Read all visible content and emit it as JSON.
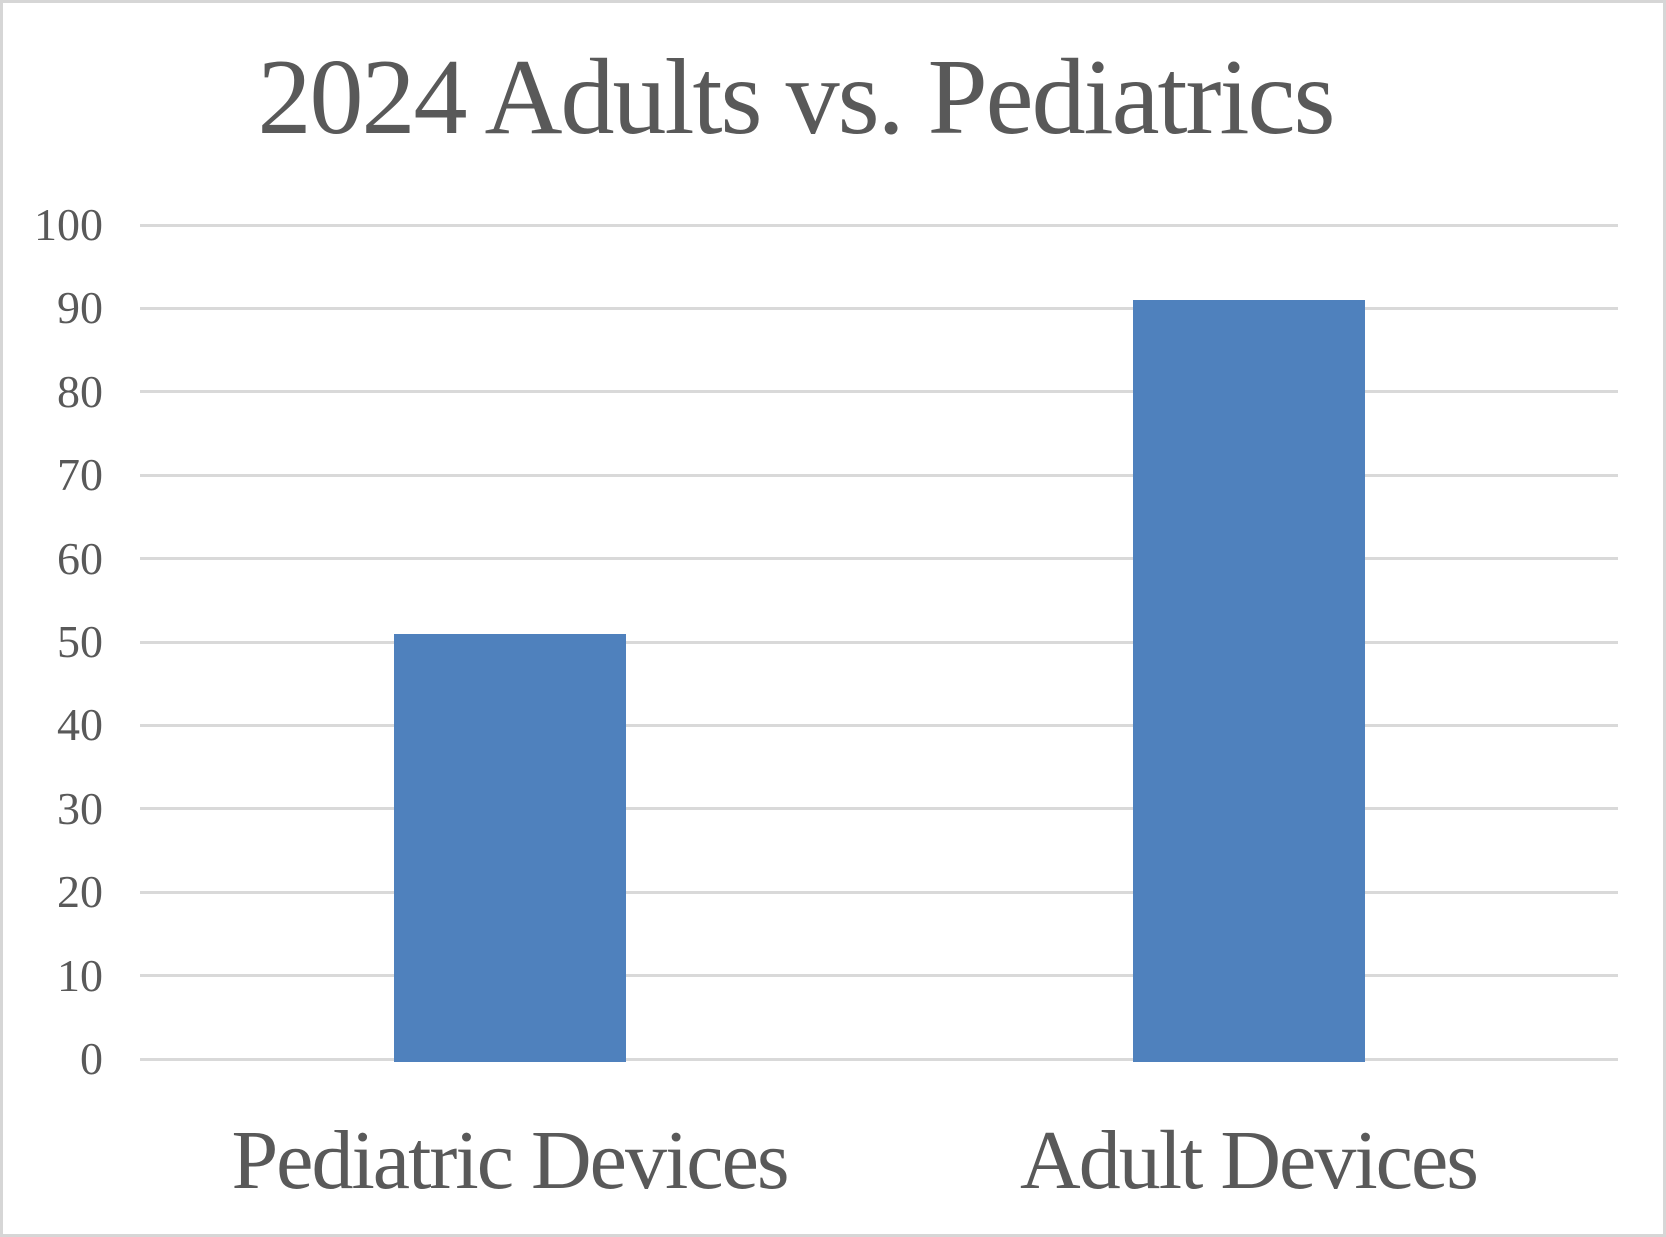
{
  "chart_data": {
    "type": "bar",
    "title": "2024 Adults vs. Pediatrics",
    "categories": [
      "Pediatric Devices",
      "Adult Devices"
    ],
    "values": [
      51,
      91
    ],
    "xlabel": "",
    "ylabel": "",
    "ylim": [
      0,
      100
    ],
    "ytick_step": 10,
    "ytick_labels": [
      "0",
      "10",
      "20",
      "30",
      "40",
      "50",
      "60",
      "70",
      "80",
      "90",
      "100"
    ],
    "grid": "horizontal-on",
    "legend": "none",
    "colors": {
      "bar_fill": "#4F81BD",
      "gridline": "#D9D9D9",
      "text": "#595959",
      "frame_border": "#D6D6D6",
      "background": "#FFFFFF"
    }
  }
}
